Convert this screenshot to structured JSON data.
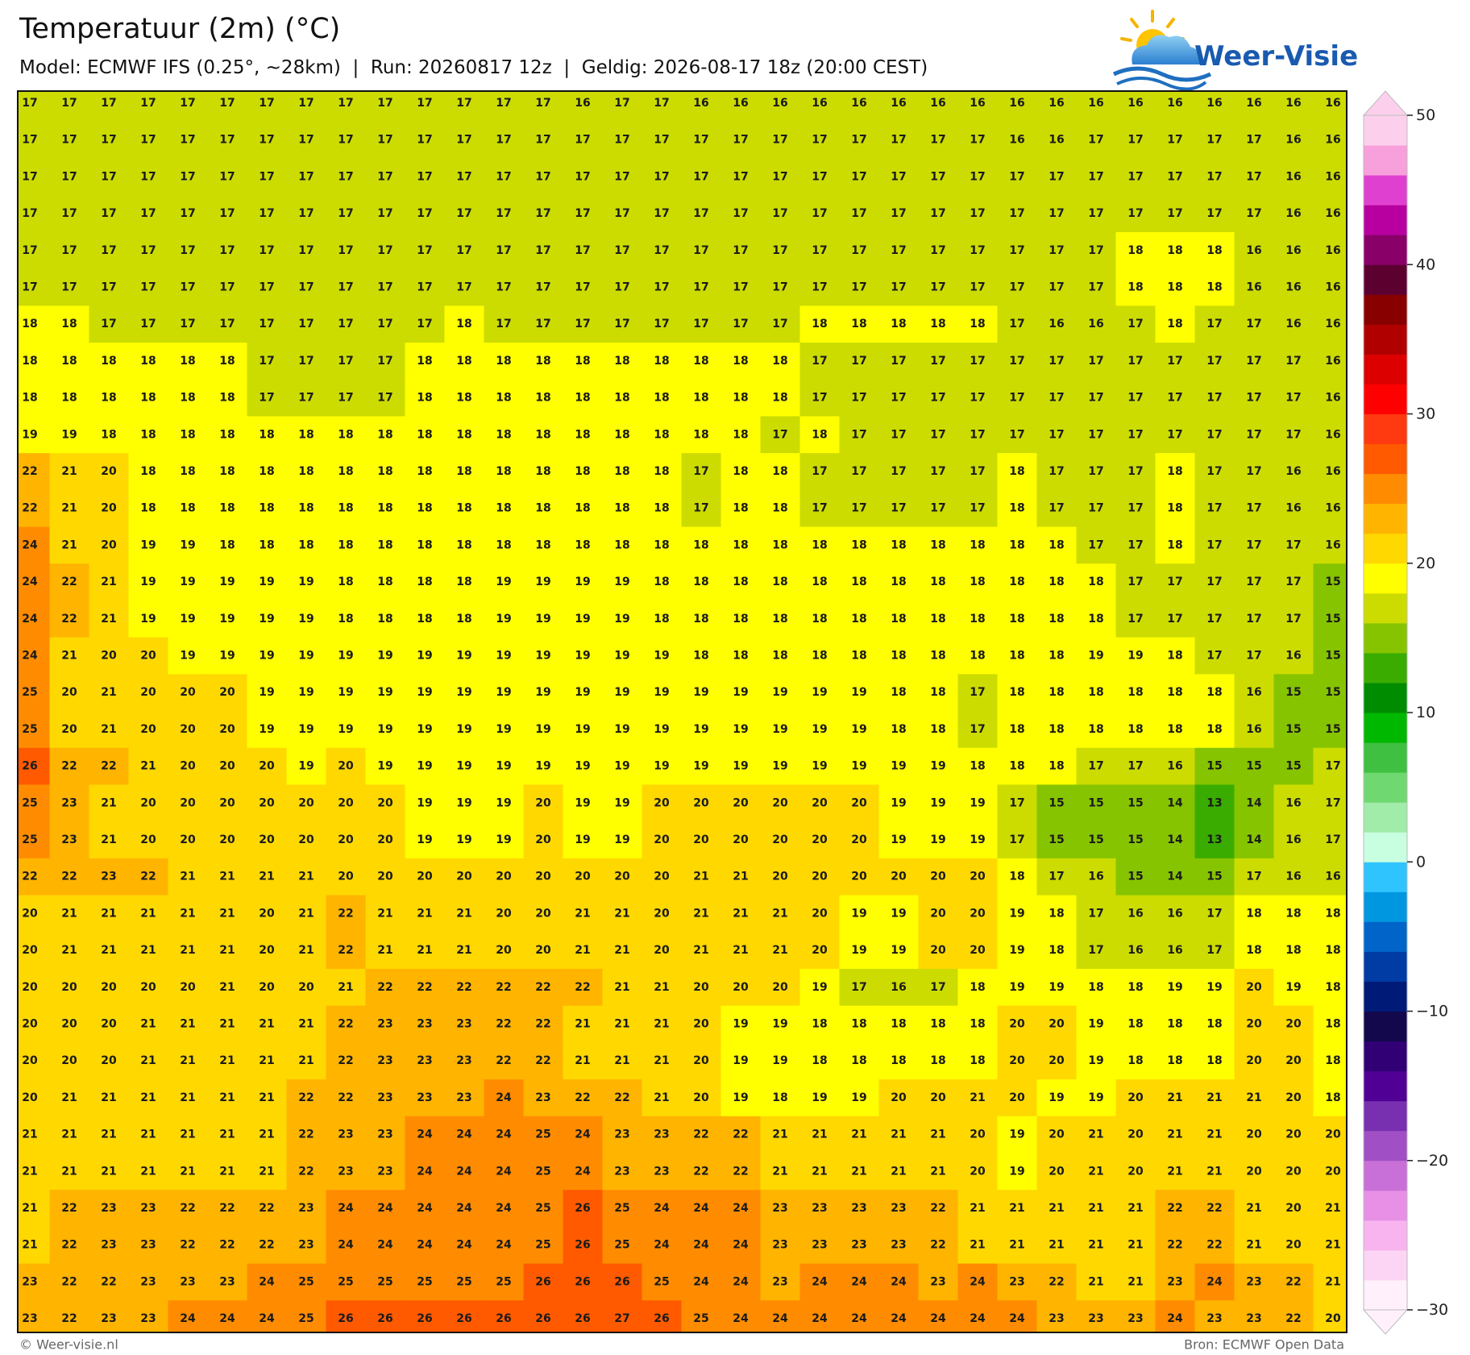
{
  "map": {
    "title": "Temperatuur (2m) (°C)",
    "subtitle": "Model: ECMWF IFS (0.25°, ~28km)  |  Run: 20260817 12z  |  Geldig: 2026-08-17 18z (20:00 CEST)",
    "logo": "Weer-Visie",
    "values": [
      [
        17,
        17,
        17,
        17,
        17,
        17,
        17,
        17,
        17,
        17,
        17,
        17,
        17,
        17,
        16,
        17,
        17,
        16,
        16,
        16,
        16,
        16,
        16,
        16,
        16,
        16,
        16,
        16,
        16,
        16,
        16,
        16,
        16,
        16
      ],
      [
        17,
        17,
        17,
        17,
        17,
        17,
        17,
        17,
        17,
        17,
        17,
        17,
        17,
        17,
        17,
        17,
        17,
        17,
        17,
        17,
        17,
        17,
        17,
        17,
        17,
        16,
        16,
        17,
        17,
        17,
        17,
        17,
        16,
        16
      ],
      [
        17,
        17,
        17,
        17,
        17,
        17,
        17,
        17,
        17,
        17,
        17,
        17,
        17,
        17,
        17,
        17,
        17,
        17,
        17,
        17,
        17,
        17,
        17,
        17,
        17,
        17,
        17,
        17,
        17,
        17,
        17,
        17,
        16,
        16
      ],
      [
        17,
        17,
        17,
        17,
        17,
        17,
        17,
        17,
        17,
        17,
        17,
        17,
        17,
        17,
        17,
        17,
        17,
        17,
        17,
        17,
        17,
        17,
        17,
        17,
        17,
        17,
        17,
        17,
        17,
        17,
        17,
        17,
        16,
        16
      ],
      [
        17,
        17,
        17,
        17,
        17,
        17,
        17,
        17,
        17,
        17,
        17,
        17,
        17,
        17,
        17,
        17,
        17,
        17,
        17,
        17,
        17,
        17,
        17,
        17,
        17,
        17,
        17,
        17,
        18,
        18,
        18,
        16,
        16,
        16
      ],
      [
        17,
        17,
        17,
        17,
        17,
        17,
        17,
        17,
        17,
        17,
        17,
        17,
        17,
        17,
        17,
        17,
        17,
        17,
        17,
        17,
        17,
        17,
        17,
        17,
        17,
        17,
        17,
        17,
        18,
        18,
        18,
        16,
        16,
        16
      ],
      [
        18,
        18,
        17,
        17,
        17,
        17,
        17,
        17,
        17,
        17,
        17,
        18,
        17,
        17,
        17,
        17,
        17,
        17,
        17,
        17,
        18,
        18,
        18,
        18,
        18,
        17,
        16,
        16,
        17,
        18,
        17,
        17,
        16,
        16
      ],
      [
        18,
        18,
        18,
        18,
        18,
        18,
        17,
        17,
        17,
        17,
        18,
        18,
        18,
        18,
        18,
        18,
        18,
        18,
        18,
        18,
        17,
        17,
        17,
        17,
        17,
        17,
        17,
        17,
        17,
        17,
        17,
        17,
        17,
        16
      ],
      [
        18,
        18,
        18,
        18,
        18,
        18,
        17,
        17,
        17,
        17,
        18,
        18,
        18,
        18,
        18,
        18,
        18,
        18,
        18,
        18,
        17,
        17,
        17,
        17,
        17,
        17,
        17,
        17,
        17,
        17,
        17,
        17,
        17,
        16
      ],
      [
        19,
        19,
        18,
        18,
        18,
        18,
        18,
        18,
        18,
        18,
        18,
        18,
        18,
        18,
        18,
        18,
        18,
        18,
        18,
        17,
        18,
        17,
        17,
        17,
        17,
        17,
        17,
        17,
        17,
        17,
        17,
        17,
        17,
        16
      ],
      [
        22,
        21,
        20,
        18,
        18,
        18,
        18,
        18,
        18,
        18,
        18,
        18,
        18,
        18,
        18,
        18,
        18,
        17,
        18,
        18,
        17,
        17,
        17,
        17,
        17,
        18,
        17,
        17,
        17,
        18,
        17,
        17,
        16,
        16
      ],
      [
        22,
        21,
        20,
        18,
        18,
        18,
        18,
        18,
        18,
        18,
        18,
        18,
        18,
        18,
        18,
        18,
        18,
        17,
        18,
        18,
        17,
        17,
        17,
        17,
        17,
        18,
        17,
        17,
        17,
        18,
        17,
        17,
        16,
        16
      ],
      [
        24,
        21,
        20,
        19,
        19,
        18,
        18,
        18,
        18,
        18,
        18,
        18,
        18,
        18,
        18,
        18,
        18,
        18,
        18,
        18,
        18,
        18,
        18,
        18,
        18,
        18,
        18,
        17,
        17,
        18,
        17,
        17,
        17,
        16
      ],
      [
        24,
        22,
        21,
        19,
        19,
        19,
        19,
        19,
        18,
        18,
        18,
        18,
        19,
        19,
        19,
        19,
        18,
        18,
        18,
        18,
        18,
        18,
        18,
        18,
        18,
        18,
        18,
        18,
        17,
        17,
        17,
        17,
        17,
        15
      ],
      [
        24,
        22,
        21,
        19,
        19,
        19,
        19,
        19,
        18,
        18,
        18,
        18,
        19,
        19,
        19,
        19,
        18,
        18,
        18,
        18,
        18,
        18,
        18,
        18,
        18,
        18,
        18,
        18,
        17,
        17,
        17,
        17,
        17,
        15
      ],
      [
        24,
        21,
        20,
        20,
        19,
        19,
        19,
        19,
        19,
        19,
        19,
        19,
        19,
        19,
        19,
        19,
        19,
        18,
        18,
        18,
        18,
        18,
        18,
        18,
        18,
        18,
        18,
        19,
        19,
        18,
        17,
        17,
        16,
        15
      ],
      [
        25,
        20,
        21,
        20,
        20,
        20,
        19,
        19,
        19,
        19,
        19,
        19,
        19,
        19,
        19,
        19,
        19,
        19,
        19,
        19,
        19,
        19,
        18,
        18,
        17,
        18,
        18,
        18,
        18,
        18,
        18,
        16,
        15,
        15
      ],
      [
        25,
        20,
        21,
        20,
        20,
        20,
        19,
        19,
        19,
        19,
        19,
        19,
        19,
        19,
        19,
        19,
        19,
        19,
        19,
        19,
        19,
        19,
        18,
        18,
        17,
        18,
        18,
        18,
        18,
        18,
        18,
        16,
        15,
        15
      ],
      [
        26,
        22,
        22,
        21,
        20,
        20,
        20,
        19,
        20,
        19,
        19,
        19,
        19,
        19,
        19,
        19,
        19,
        19,
        19,
        19,
        19,
        19,
        19,
        19,
        18,
        18,
        18,
        17,
        17,
        16,
        15,
        15,
        15,
        17
      ],
      [
        25,
        23,
        21,
        20,
        20,
        20,
        20,
        20,
        20,
        20,
        19,
        19,
        19,
        20,
        19,
        19,
        20,
        20,
        20,
        20,
        20,
        20,
        19,
        19,
        19,
        17,
        15,
        15,
        15,
        14,
        13,
        14,
        16,
        17
      ],
      [
        25,
        23,
        21,
        20,
        20,
        20,
        20,
        20,
        20,
        20,
        19,
        19,
        19,
        20,
        19,
        19,
        20,
        20,
        20,
        20,
        20,
        20,
        19,
        19,
        19,
        17,
        15,
        15,
        15,
        14,
        13,
        14,
        16,
        17
      ],
      [
        22,
        22,
        23,
        22,
        21,
        21,
        21,
        21,
        20,
        20,
        20,
        20,
        20,
        20,
        20,
        20,
        20,
        21,
        21,
        20,
        20,
        20,
        20,
        20,
        20,
        18,
        17,
        16,
        15,
        14,
        15,
        17,
        16,
        16
      ],
      [
        20,
        21,
        21,
        21,
        21,
        21,
        20,
        21,
        22,
        21,
        21,
        21,
        20,
        20,
        21,
        21,
        20,
        21,
        21,
        21,
        20,
        19,
        19,
        20,
        20,
        19,
        18,
        17,
        16,
        16,
        17,
        18,
        18,
        18
      ],
      [
        20,
        21,
        21,
        21,
        21,
        21,
        20,
        21,
        22,
        21,
        21,
        21,
        20,
        20,
        21,
        21,
        20,
        21,
        21,
        21,
        20,
        19,
        19,
        20,
        20,
        19,
        18,
        17,
        16,
        16,
        17,
        18,
        18,
        18
      ],
      [
        20,
        20,
        20,
        20,
        20,
        21,
        20,
        20,
        21,
        22,
        22,
        22,
        22,
        22,
        22,
        21,
        21,
        20,
        20,
        20,
        19,
        17,
        16,
        17,
        18,
        19,
        19,
        18,
        18,
        19,
        19,
        20,
        19,
        18
      ],
      [
        20,
        20,
        20,
        21,
        21,
        21,
        21,
        21,
        22,
        23,
        23,
        23,
        22,
        22,
        21,
        21,
        21,
        20,
        19,
        19,
        18,
        18,
        18,
        18,
        18,
        20,
        20,
        19,
        18,
        18,
        18,
        20,
        20,
        18
      ],
      [
        20,
        20,
        20,
        21,
        21,
        21,
        21,
        21,
        22,
        23,
        23,
        23,
        22,
        22,
        21,
        21,
        21,
        20,
        19,
        19,
        18,
        18,
        18,
        18,
        18,
        20,
        20,
        19,
        18,
        18,
        18,
        20,
        20,
        18
      ],
      [
        20,
        21,
        21,
        21,
        21,
        21,
        21,
        22,
        22,
        23,
        23,
        23,
        24,
        23,
        22,
        22,
        21,
        20,
        19,
        18,
        19,
        19,
        20,
        20,
        21,
        20,
        19,
        19,
        20,
        21,
        21,
        21,
        20,
        18
      ],
      [
        21,
        21,
        21,
        21,
        21,
        21,
        21,
        22,
        23,
        23,
        24,
        24,
        24,
        25,
        24,
        23,
        23,
        22,
        22,
        21,
        21,
        21,
        21,
        21,
        20,
        19,
        20,
        21,
        20,
        21,
        21,
        20,
        20,
        20
      ],
      [
        21,
        21,
        21,
        21,
        21,
        21,
        21,
        22,
        23,
        23,
        24,
        24,
        24,
        25,
        24,
        23,
        23,
        22,
        22,
        21,
        21,
        21,
        21,
        21,
        20,
        19,
        20,
        21,
        20,
        21,
        21,
        20,
        20,
        20
      ],
      [
        21,
        22,
        23,
        23,
        22,
        22,
        22,
        23,
        24,
        24,
        24,
        24,
        24,
        25,
        26,
        25,
        24,
        24,
        24,
        23,
        23,
        23,
        23,
        22,
        21,
        21,
        21,
        21,
        21,
        22,
        22,
        21,
        20,
        21
      ],
      [
        21,
        22,
        23,
        23,
        22,
        22,
        22,
        23,
        24,
        24,
        24,
        24,
        24,
        25,
        26,
        25,
        24,
        24,
        24,
        23,
        23,
        23,
        23,
        22,
        21,
        21,
        21,
        21,
        21,
        22,
        22,
        21,
        20,
        21
      ],
      [
        23,
        22,
        22,
        23,
        23,
        23,
        24,
        25,
        25,
        25,
        25,
        25,
        25,
        26,
        26,
        26,
        25,
        24,
        24,
        23,
        24,
        24,
        24,
        23,
        24,
        23,
        22,
        21,
        21,
        23,
        24,
        23,
        22,
        21
      ],
      [
        23,
        22,
        23,
        23,
        24,
        24,
        24,
        25,
        26,
        26,
        26,
        26,
        26,
        26,
        26,
        27,
        26,
        25,
        24,
        24,
        24,
        24,
        24,
        24,
        24,
        24,
        23,
        23,
        23,
        24,
        23,
        23,
        22,
        20
      ]
    ],
    "colorbar": {
      "lim": [
        -30,
        50
      ],
      "ticks": [
        50,
        40,
        30,
        20,
        10,
        0,
        {
          "value": -10,
          "label": "−10"
        },
        {
          "value": -20,
          "label": "−20"
        },
        {
          "value": -30,
          "label": "−30"
        }
      ],
      "colors": [
        "#fff0fc",
        "#fcd4f4",
        "#f8b4ee",
        "#e890e6",
        "#c870d8",
        "#a050c4",
        "#7830b0",
        "#500094",
        "#300074",
        "#14084c",
        "#001a78",
        "#003ca4",
        "#0064c8",
        "#0096e0",
        "#30c4ff",
        "#c8ffe0",
        "#a0eca8",
        "#70d870",
        "#40c040",
        "#00b800",
        "#008c00",
        "#3aac00",
        "#86c400",
        "#ccdc00",
        "#ffff00",
        "#ffd800",
        "#ffb400",
        "#ff8c00",
        "#ff5a00",
        "#ff3a10",
        "#ff0000",
        "#dd0000",
        "#b00000",
        "#880000",
        "#5c0030",
        "#880068",
        "#b800a0",
        "#e040d0",
        "#f8a0dc",
        "#fcd0ec"
      ]
    },
    "footer": {
      "left": "© Weer-visie.nl",
      "right": "Bron: ECMWF Open Data"
    }
  }
}
